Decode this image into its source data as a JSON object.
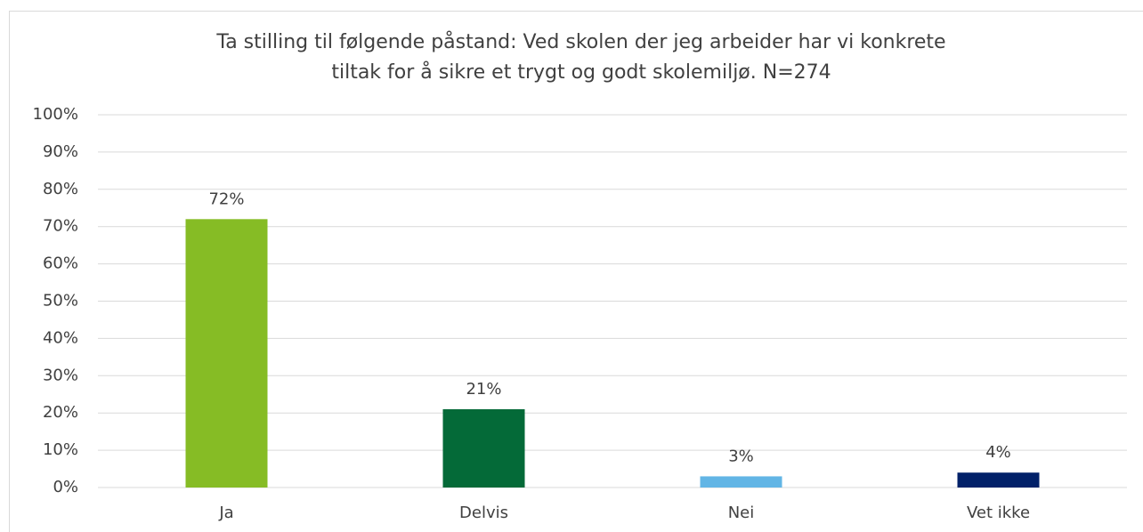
{
  "chart_data": {
    "type": "bar",
    "title": [
      "Ta stilling til følgende påstand: Ved skolen der jeg arbeider har vi konkrete",
      "tiltak for å sikre et trygt og godt skolemiljø. N=274"
    ],
    "categories": [
      "Ja",
      "Delvis",
      "Nei",
      "Vet ikke"
    ],
    "values": [
      72,
      21,
      3,
      4
    ],
    "value_labels": [
      "72%",
      "21%",
      "3%",
      "4%"
    ],
    "colors": [
      "#86bc25",
      "#046a38",
      "#62b5e5",
      "#012169"
    ],
    "ylim": [
      0,
      100
    ],
    "yticks": [
      {
        "value": 0,
        "label": "0%"
      },
      {
        "value": 10,
        "label": "10%"
      },
      {
        "value": 20,
        "label": "20%"
      },
      {
        "value": 30,
        "label": "30%"
      },
      {
        "value": 40,
        "label": "40%"
      },
      {
        "value": 50,
        "label": "50%"
      },
      {
        "value": 60,
        "label": "60%"
      },
      {
        "value": 70,
        "label": "70%"
      },
      {
        "value": 80,
        "label": "80%"
      },
      {
        "value": 90,
        "label": "90%"
      },
      {
        "value": 100,
        "label": "100%"
      }
    ],
    "grid": true
  }
}
